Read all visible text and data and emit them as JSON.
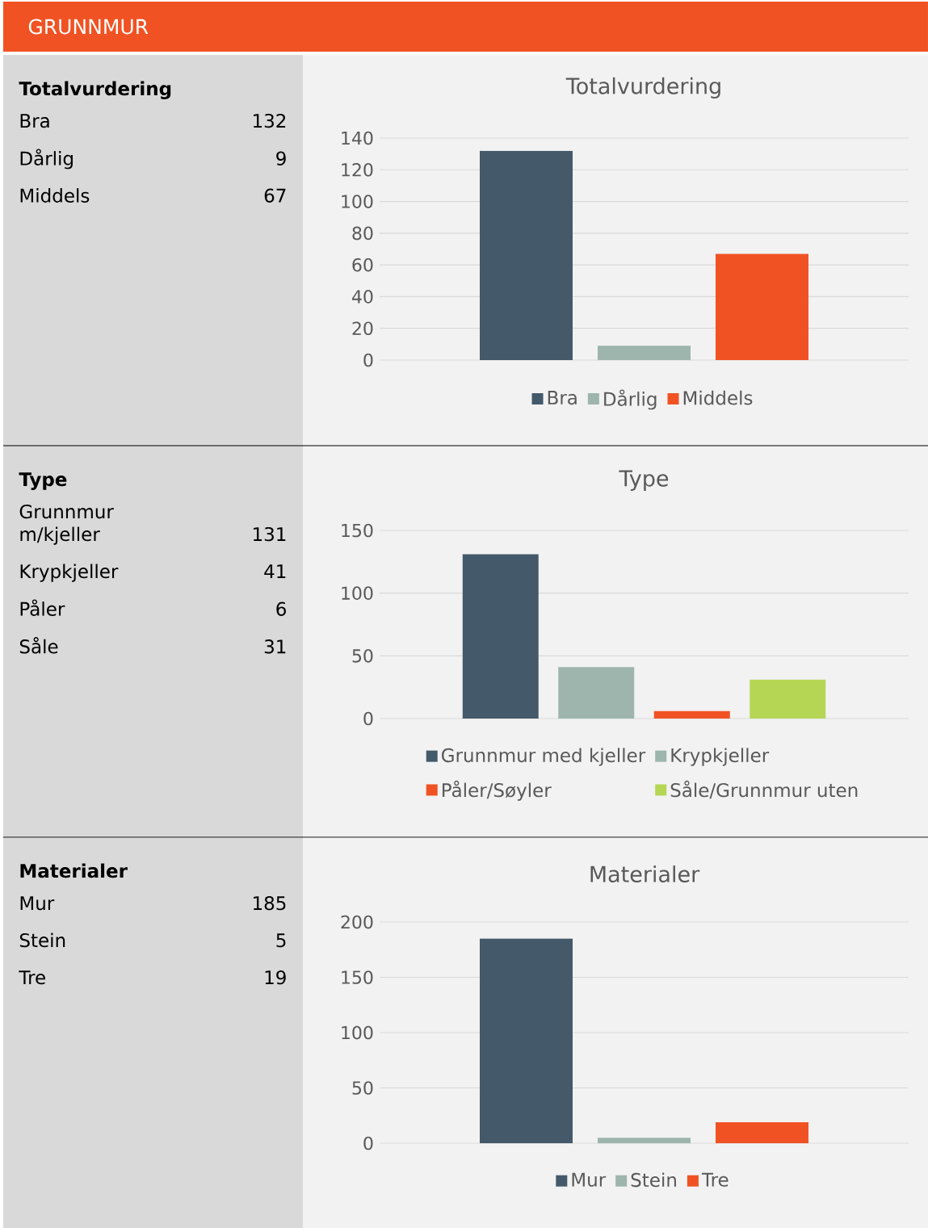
{
  "chart_data": [
    {
      "type": "other",
      "title": "GRUNNMUR"
    },
    {
      "type": "other",
      "title": "Totalvurdering",
      "annotations": [
        "Bra",
        "132",
        "Dårlig",
        "9",
        "Middels",
        "67"
      ]
    },
    {
      "type": "bar",
      "title": "Totalvurdering",
      "categories": [
        null
      ],
      "ylim": [
        0,
        140
      ],
      "yticks": [
        0,
        20,
        40,
        60,
        80,
        100,
        120,
        140
      ],
      "grid": "y",
      "legend": "bottom",
      "series": [
        {
          "name": "Bra",
          "color": "#44596a",
          "values": [
            132
          ]
        },
        {
          "name": "Dårlig",
          "color": "#9db5ad",
          "values": [
            9
          ]
        },
        {
          "name": "Middels",
          "color": "#f15223",
          "values": [
            67
          ]
        }
      ]
    },
    {
      "type": "other",
      "title": "Type",
      "annotations": [
        "Grunnmur m/kjeller",
        "131",
        "Krypkjeller",
        "41",
        "Påler",
        "6",
        "Såle",
        "31"
      ]
    },
    {
      "type": "bar",
      "title": "Type",
      "categories": [
        null
      ],
      "ylim": [
        0,
        150
      ],
      "yticks": [
        0,
        50,
        100,
        150
      ],
      "grid": "y",
      "legend": "bottom",
      "series": [
        {
          "name": "Grunnmur med kjeller",
          "color": "#44596a",
          "values": [
            131
          ]
        },
        {
          "name": "Krypkjeller",
          "color": "#9db5ad",
          "values": [
            41
          ]
        },
        {
          "name": "Påler/Søyler",
          "color": "#f15223",
          "values": [
            6
          ]
        },
        {
          "name": "Såle/Grunnmur uten",
          "color": "#b5d655",
          "values": [
            31
          ]
        }
      ]
    },
    {
      "type": "other",
      "title": "Materialer",
      "annotations": [
        "Mur",
        "185",
        "Stein",
        "5",
        "Tre",
        "19"
      ]
    },
    {
      "type": "bar",
      "title": "Materialer",
      "categories": [
        null
      ],
      "ylim": [
        0,
        200
      ],
      "yticks": [
        0,
        50,
        100,
        150,
        200
      ],
      "grid": "y",
      "legend": "bottom",
      "series": [
        {
          "name": "Mur",
          "color": "#44596a",
          "values": [
            185
          ]
        },
        {
          "name": "Stein",
          "color": "#9db5ad",
          "values": [
            5
          ]
        },
        {
          "name": "Tre",
          "color": "#f15223",
          "values": [
            19
          ]
        }
      ]
    }
  ]
}
